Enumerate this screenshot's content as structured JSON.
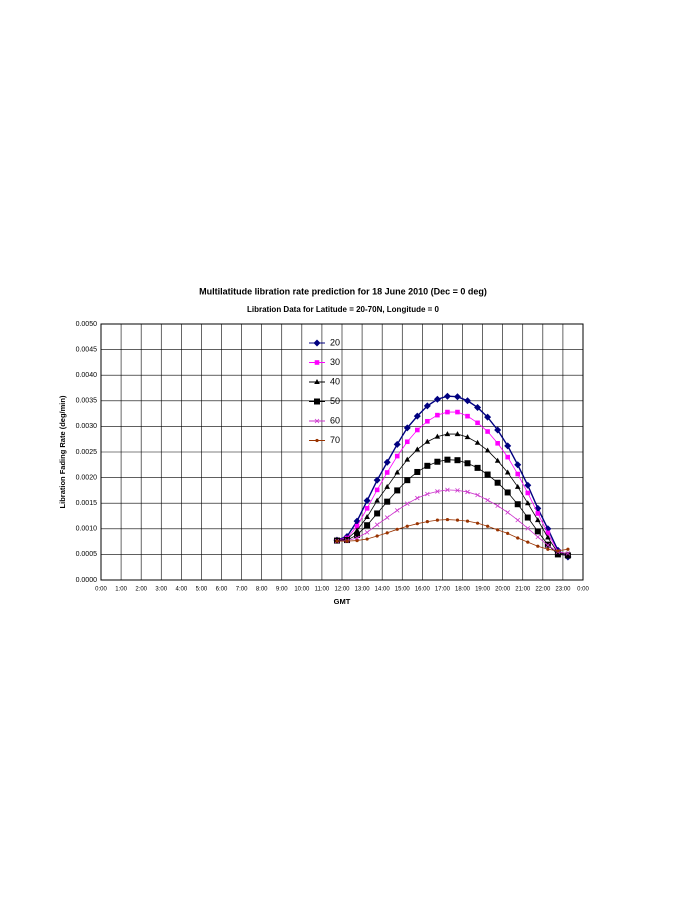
{
  "chart_data": {
    "type": "line",
    "title": "Multilatitude libration rate prediction for 18 June 2010 (Dec = 0 deg)",
    "subtitle": "Libration  Data for Latitude = 20-70N, Longitude = 0",
    "x_label": "GMT",
    "y_label": "Libration Fading Rate (deg/min)",
    "xlim": [
      0,
      24
    ],
    "ylim": [
      0,
      0.005
    ],
    "grid": true,
    "legend": "inside-top-center",
    "xticks": [
      {
        "value": 0,
        "label": "0:00"
      },
      {
        "value": 1,
        "label": "1:00"
      },
      {
        "value": 2,
        "label": "2:00"
      },
      {
        "value": 3,
        "label": "3:00"
      },
      {
        "value": 4,
        "label": "4:00"
      },
      {
        "value": 5,
        "label": "5:00"
      },
      {
        "value": 6,
        "label": "6:00"
      },
      {
        "value": 7,
        "label": "7:00"
      },
      {
        "value": 8,
        "label": "8:00"
      },
      {
        "value": 9,
        "label": "9:00"
      },
      {
        "value": 10,
        "label": "10:00"
      },
      {
        "value": 11,
        "label": "11:00"
      },
      {
        "value": 12,
        "label": "12:00"
      },
      {
        "value": 13,
        "label": "13:00"
      },
      {
        "value": 14,
        "label": "14:00"
      },
      {
        "value": 15,
        "label": "15:00"
      },
      {
        "value": 16,
        "label": "16:00"
      },
      {
        "value": 17,
        "label": "17:00"
      },
      {
        "value": 18,
        "label": "18:00"
      },
      {
        "value": 19,
        "label": "19:00"
      },
      {
        "value": 20,
        "label": "20:00"
      },
      {
        "value": 21,
        "label": "21:00"
      },
      {
        "value": 22,
        "label": "22:00"
      },
      {
        "value": 23,
        "label": "23:00"
      },
      {
        "value": 24,
        "label": "0:00"
      }
    ],
    "yticks": [
      {
        "value": 0,
        "label": "0.0000"
      },
      {
        "value": 0.0005,
        "label": "0.0005"
      },
      {
        "value": 0.001,
        "label": "0.0010"
      },
      {
        "value": 0.0015,
        "label": "0.0015"
      },
      {
        "value": 0.002,
        "label": "0.0020"
      },
      {
        "value": 0.0025,
        "label": "0.0025"
      },
      {
        "value": 0.003,
        "label": "0.0030"
      },
      {
        "value": 0.0035,
        "label": "0.0035"
      },
      {
        "value": 0.004,
        "label": "0.0040"
      },
      {
        "value": 0.0045,
        "label": "0.0045"
      },
      {
        "value": 0.005,
        "label": "0.0050"
      }
    ],
    "x": [
      11.75,
      12.25,
      12.75,
      13.25,
      13.75,
      14.25,
      14.75,
      15.25,
      15.75,
      16.25,
      16.75,
      17.25,
      17.75,
      18.25,
      18.75,
      19.25,
      19.75,
      20.25,
      20.75,
      21.25,
      21.75,
      22.25,
      22.75,
      23.25
    ],
    "series": [
      {
        "name": "20",
        "color": "#000080",
        "marker": "diamond",
        "values": [
          0.00078,
          0.00085,
          0.00115,
          0.00155,
          0.00195,
          0.0023,
          0.00265,
          0.00297,
          0.0032,
          0.0034,
          0.00353,
          0.00359,
          0.00358,
          0.0035,
          0.00337,
          0.00318,
          0.00293,
          0.00262,
          0.00225,
          0.00185,
          0.0014,
          0.001,
          0.00058,
          0.00045
        ]
      },
      {
        "name": "30",
        "color": "#ff00ff",
        "marker": "square",
        "values": [
          0.00078,
          0.00082,
          0.00105,
          0.0014,
          0.00176,
          0.0021,
          0.00242,
          0.0027,
          0.00293,
          0.0031,
          0.00322,
          0.00328,
          0.00328,
          0.0032,
          0.00307,
          0.0029,
          0.00267,
          0.0024,
          0.00207,
          0.0017,
          0.0013,
          0.00092,
          0.00055,
          0.00048
        ]
      },
      {
        "name": "40",
        "color": "#000000",
        "marker": "triangle",
        "values": [
          0.00077,
          0.0008,
          0.00097,
          0.00123,
          0.00155,
          0.00182,
          0.0021,
          0.00235,
          0.00255,
          0.0027,
          0.0028,
          0.00285,
          0.00285,
          0.00279,
          0.00268,
          0.00253,
          0.00233,
          0.0021,
          0.00182,
          0.0015,
          0.00117,
          0.00083,
          0.00053,
          0.0005
        ]
      },
      {
        "name": "50",
        "color": "#000000",
        "marker": "bigsquare",
        "values": [
          0.00077,
          0.00078,
          0.00088,
          0.00107,
          0.0013,
          0.00153,
          0.00175,
          0.00195,
          0.00211,
          0.00223,
          0.00231,
          0.00235,
          0.00234,
          0.00228,
          0.00219,
          0.00206,
          0.0019,
          0.00171,
          0.00148,
          0.00122,
          0.00095,
          0.00069,
          0.0005,
          0.00048
        ]
      },
      {
        "name": "60",
        "color": "#cc33cc",
        "marker": "cross",
        "values": [
          0.00076,
          0.00077,
          0.00082,
          0.00093,
          0.00108,
          0.00122,
          0.00136,
          0.00149,
          0.0016,
          0.00168,
          0.00173,
          0.00176,
          0.00175,
          0.00172,
          0.00166,
          0.00156,
          0.00145,
          0.00132,
          0.00117,
          0.00101,
          0.00084,
          0.00068,
          0.00055,
          0.00052
        ]
      },
      {
        "name": "70",
        "color": "#993300",
        "marker": "circle",
        "values": [
          0.00076,
          0.00076,
          0.00077,
          0.0008,
          0.00086,
          0.00092,
          0.00099,
          0.00105,
          0.0011,
          0.00114,
          0.00117,
          0.00118,
          0.00117,
          0.00115,
          0.00111,
          0.00105,
          0.00098,
          0.00091,
          0.00082,
          0.00074,
          0.00066,
          0.0006,
          0.00057,
          0.0006
        ]
      }
    ]
  }
}
